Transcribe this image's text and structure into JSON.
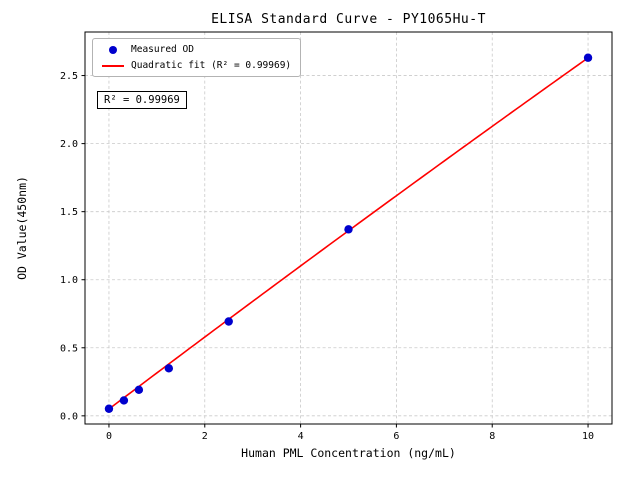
{
  "chart_data": {
    "type": "scatter",
    "title": "ELISA Standard Curve - PY1065Hu-T",
    "xlabel": "Human PML Concentration (ng/mL)",
    "ylabel": "OD Value(450nm)",
    "xlim": [
      -0.5,
      10.5
    ],
    "ylim": [
      -0.06,
      2.82
    ],
    "x_ticks": [
      0,
      2,
      4,
      6,
      8,
      10
    ],
    "x_tick_labels": [
      "0",
      "2",
      "4",
      "6",
      "8",
      "10"
    ],
    "y_ticks": [
      0,
      0.5,
      1.0,
      1.5,
      2.0,
      2.5
    ],
    "y_tick_labels": [
      "0.0",
      "0.5",
      "1.0",
      "1.5",
      "2.0",
      "2.5"
    ],
    "grid": true,
    "series": [
      {
        "name": "Measured OD",
        "type": "scatter",
        "color": "#0000cd",
        "x": [
          0,
          0.312,
          0.625,
          1.25,
          2.5,
          5,
          10
        ],
        "y": [
          0.052,
          0.113,
          0.191,
          0.349,
          0.693,
          1.37,
          2.631
        ]
      },
      {
        "name": "Quadratic fit (R² = 0.99969)",
        "type": "line",
        "color": "#ff0000",
        "fit_coefficients": {
          "a": -0.0008,
          "b": 0.266,
          "c": 0.05
        },
        "x_range": [
          0,
          10
        ]
      }
    ],
    "legend": {
      "position": "upper-left",
      "entries": [
        "Measured OD",
        "Quadratic fit (R² = 0.99969)"
      ]
    },
    "annotation": "R² = 0.99969",
    "r_squared": 0.99969
  }
}
